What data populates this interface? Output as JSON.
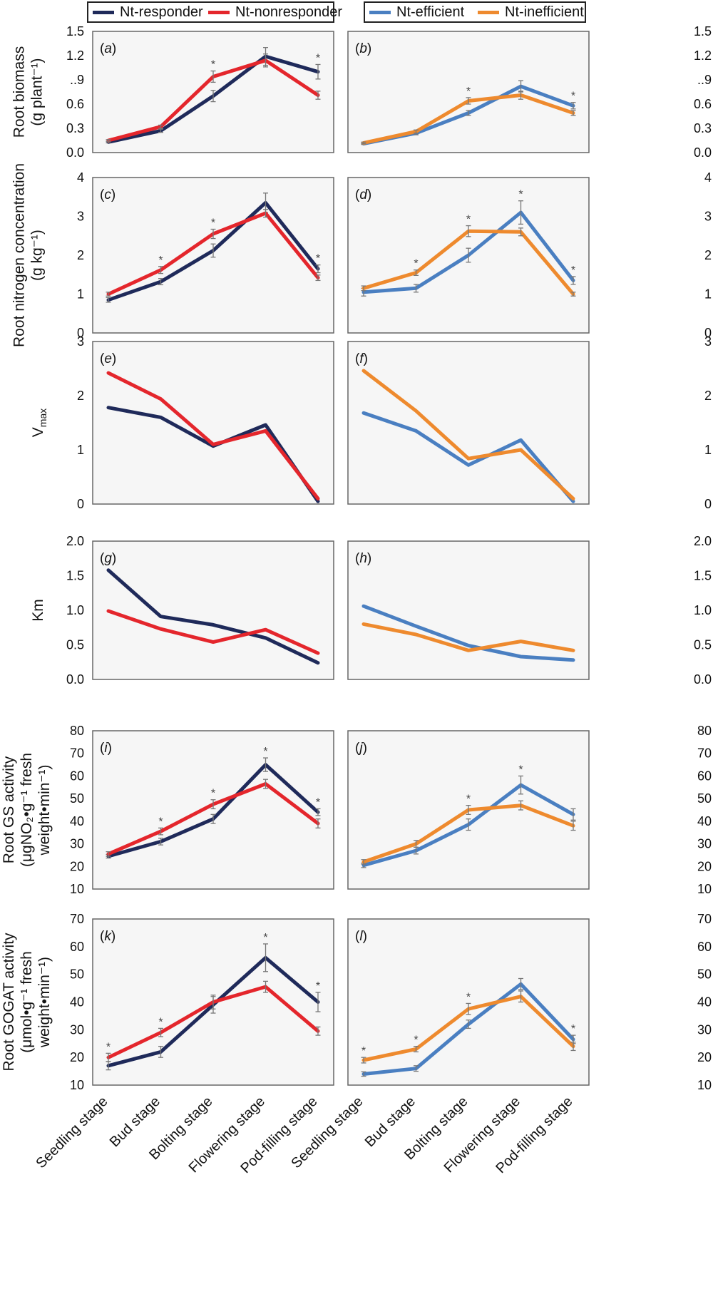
{
  "legend_groups": [
    {
      "entries": [
        {
          "label": "Nt-responder",
          "color": "#1f2a5a"
        },
        {
          "label": "Nt-nonresponder",
          "color": "#e4262c"
        }
      ]
    },
    {
      "entries": [
        {
          "label": "Nt-efficient",
          "color": "#4a7fc1"
        },
        {
          "label": "Nt-inefficient",
          "color": "#ee8a2e"
        }
      ]
    }
  ],
  "categories": [
    "Seedling stage",
    "Bud stage",
    "Bolting stage",
    "Flowering stage",
    "Pod-filling stage"
  ],
  "chart_data": [
    {
      "type": "line",
      "panel": "a",
      "ylabel": [
        "Root biomass",
        "(g plant⁻¹)"
      ],
      "yticks": [
        "0.0",
        "0.3",
        "0.6",
        "..9",
        "1.2",
        "1.5"
      ],
      "ylim": [
        0,
        1.5
      ],
      "categories": [
        "Seedling stage",
        "Bud stage",
        "Bolting stage",
        "Flowering stage",
        "Pod-filling stage"
      ],
      "series": [
        {
          "name": "Nt-responder",
          "values": [
            0.13,
            0.27,
            0.7,
            1.19,
            1.0
          ],
          "err": [
            0.01,
            0.02,
            0.07,
            0.11,
            0.09
          ]
        },
        {
          "name": "Nt-nonresponder",
          "values": [
            0.15,
            0.32,
            0.94,
            1.14,
            0.71
          ],
          "err": [
            0.01,
            0.02,
            0.07,
            0.08,
            0.05
          ]
        }
      ],
      "significant": [
        false,
        false,
        true,
        false,
        true
      ]
    },
    {
      "type": "line",
      "panel": "b",
      "yticks": [
        "0.0",
        "0.3",
        "0.6",
        "..9",
        "1.2",
        "1.5"
      ],
      "ylim": [
        0,
        1.5
      ],
      "categories": [
        "Seedling stage",
        "Bud stage",
        "Bolting stage",
        "Flowering stage",
        "Pod-filling stage"
      ],
      "series": [
        {
          "name": "Nt-efficient",
          "values": [
            0.11,
            0.24,
            0.49,
            0.82,
            0.58
          ],
          "err": [
            0.01,
            0.02,
            0.03,
            0.07,
            0.04
          ]
        },
        {
          "name": "Nt-inefficient",
          "values": [
            0.12,
            0.26,
            0.64,
            0.71,
            0.49
          ],
          "err": [
            0.01,
            0.02,
            0.04,
            0.05,
            0.03
          ]
        }
      ],
      "significant": [
        false,
        false,
        true,
        false,
        true
      ]
    },
    {
      "type": "line",
      "panel": "c",
      "ylabel": [
        "Root nitrogen concentration",
        "(g kg⁻¹)"
      ],
      "yticks": [
        "0",
        "1",
        "2",
        "3",
        "4"
      ],
      "ylim": [
        0,
        4
      ],
      "categories": [
        "Seedling stage",
        "Bud stage",
        "Bolting stage",
        "Flowering stage",
        "Pod-filling stage"
      ],
      "series": [
        {
          "name": "Nt-responder",
          "values": [
            0.85,
            1.32,
            2.12,
            3.35,
            1.65
          ],
          "err": [
            0.06,
            0.08,
            0.17,
            0.25,
            0.1
          ]
        },
        {
          "name": "Nt-nonresponder",
          "values": [
            1.0,
            1.62,
            2.55,
            3.08,
            1.42
          ],
          "err": [
            0.05,
            0.09,
            0.12,
            0.1,
            0.07
          ]
        }
      ],
      "significant": [
        false,
        true,
        true,
        false,
        true
      ]
    },
    {
      "type": "line",
      "panel": "d",
      "yticks": [
        "0",
        "1",
        "2",
        "3",
        "4"
      ],
      "ylim": [
        0,
        4
      ],
      "categories": [
        "Seedling stage",
        "Bud stage",
        "Bolting stage",
        "Flowering stage",
        "Pod-filling stage"
      ],
      "series": [
        {
          "name": "Nt-efficient",
          "values": [
            1.05,
            1.15,
            2.0,
            3.1,
            1.35
          ],
          "err": [
            0.1,
            0.1,
            0.18,
            0.3,
            0.1
          ]
        },
        {
          "name": "Nt-inefficient",
          "values": [
            1.15,
            1.55,
            2.62,
            2.6,
            1.0
          ],
          "err": [
            0.06,
            0.07,
            0.14,
            0.1,
            0.05
          ]
        }
      ],
      "significant": [
        false,
        true,
        true,
        true,
        true
      ]
    },
    {
      "type": "line",
      "panel": "e",
      "ylabel": [
        "V"
      ],
      "ylabel_sub": "max",
      "yticks": [
        "0",
        "1",
        "2",
        "3"
      ],
      "ylim": [
        0,
        3
      ],
      "categories": [
        "Seedling stage",
        "Bud stage",
        "Bolting stage",
        "Flowering stage",
        "Pod-filling stage"
      ],
      "series": [
        {
          "name": "Nt-responder",
          "values": [
            1.78,
            1.6,
            1.07,
            1.46,
            0.05
          ]
        },
        {
          "name": "Nt-nonresponder",
          "values": [
            2.42,
            1.94,
            1.1,
            1.35,
            0.1
          ]
        }
      ]
    },
    {
      "type": "line",
      "panel": "f",
      "yticks": [
        "0",
        "1",
        "2",
        "3"
      ],
      "ylim": [
        0,
        3
      ],
      "categories": [
        "Seedling stage",
        "Bud stage",
        "Bolting stage",
        "Flowering stage",
        "Pod-filling stage"
      ],
      "series": [
        {
          "name": "Nt-efficient",
          "values": [
            1.68,
            1.35,
            0.72,
            1.18,
            0.05
          ]
        },
        {
          "name": "Nt-inefficient",
          "values": [
            2.46,
            1.72,
            0.84,
            1.0,
            0.1
          ]
        }
      ]
    },
    {
      "type": "line",
      "panel": "g",
      "ylabel": [
        "Km"
      ],
      "yticks": [
        "0.0",
        "0.5",
        "1.0",
        "1.5",
        "2.0"
      ],
      "ylim": [
        0,
        2
      ],
      "categories": [
        "Seedling stage",
        "Bud stage",
        "Bolting stage",
        "Flowering stage",
        "Pod-filling stage"
      ],
      "series": [
        {
          "name": "Nt-responder",
          "values": [
            1.58,
            0.91,
            0.79,
            0.6,
            0.24
          ]
        },
        {
          "name": "Nt-nonresponder",
          "values": [
            0.99,
            0.73,
            0.54,
            0.72,
            0.38
          ]
        }
      ]
    },
    {
      "type": "line",
      "panel": "h",
      "yticks": [
        "0.0",
        "0.5",
        "1.0",
        "1.5",
        "2.0"
      ],
      "ylim": [
        0,
        2
      ],
      "categories": [
        "Seedling stage",
        "Bud stage",
        "Bolting stage",
        "Flowering stage",
        "Pod-filling stage"
      ],
      "series": [
        {
          "name": "Nt-efficient",
          "values": [
            1.06,
            0.77,
            0.49,
            0.33,
            0.28
          ]
        },
        {
          "name": "Nt-inefficient",
          "values": [
            0.8,
            0.65,
            0.42,
            0.55,
            0.42
          ]
        }
      ]
    },
    {
      "type": "line",
      "panel": "i",
      "ylabel": [
        "Root GS activity",
        "(μgNO₂•g⁻¹ fresh",
        "weight•min⁻¹)"
      ],
      "yticks": [
        "10",
        "20",
        "30",
        "40",
        "50",
        "60",
        "70",
        "80"
      ],
      "ylim": [
        10,
        80
      ],
      "categories": [
        "Seedling stage",
        "Bud stage",
        "Bolting stage",
        "Flowering stage",
        "Pod-filling stage"
      ],
      "series": [
        {
          "name": "Nt-responder",
          "values": [
            24.5,
            31.0,
            41.0,
            65.0,
            44.0
          ],
          "err": [
            0.8,
            1.5,
            2.0,
            3.0,
            1.5
          ]
        },
        {
          "name": "Nt-nonresponder",
          "values": [
            25.5,
            35.5,
            47.5,
            56.5,
            39.0
          ],
          "err": [
            1.0,
            1.5,
            2.0,
            2.0,
            2.0
          ]
        }
      ],
      "significant": [
        false,
        true,
        true,
        true,
        true
      ]
    },
    {
      "type": "line",
      "panel": "j",
      "yticks": [
        "10",
        "20",
        "30",
        "40",
        "50",
        "60",
        "70",
        "80"
      ],
      "ylim": [
        10,
        80
      ],
      "categories": [
        "Seedling stage",
        "Bud stage",
        "Bolting stage",
        "Flowering stage",
        "Pod-filling stage"
      ],
      "series": [
        {
          "name": "Nt-efficient",
          "values": [
            20.5,
            27.0,
            38.5,
            56.0,
            43.0
          ],
          "err": [
            1.0,
            1.5,
            2.5,
            4.0,
            2.5
          ]
        },
        {
          "name": "Nt-inefficient",
          "values": [
            22.0,
            30.0,
            45.0,
            47.0,
            38.0
          ],
          "err": [
            1.0,
            1.5,
            2.0,
            2.0,
            2.0
          ]
        }
      ],
      "significant": [
        false,
        false,
        true,
        true,
        false
      ]
    },
    {
      "type": "line",
      "panel": "k",
      "ylabel": [
        "Root GOGAT activity",
        "(μmol•g⁻¹ fresh",
        "weight•min⁻¹)"
      ],
      "yticks": [
        "10",
        "20",
        "30",
        "40",
        "50",
        "60",
        "70"
      ],
      "ylim": [
        10,
        70
      ],
      "categories": [
        "Seedling stage",
        "Bud stage",
        "Bolting stage",
        "Flowering stage",
        "Pod-filling stage"
      ],
      "series": [
        {
          "name": "Nt-responder",
          "values": [
            17.0,
            22.0,
            39.0,
            56.0,
            40.0
          ],
          "err": [
            1.5,
            2.0,
            3.0,
            5.0,
            3.5
          ]
        },
        {
          "name": "Nt-nonresponder",
          "values": [
            20.0,
            29.0,
            40.0,
            45.5,
            29.5
          ],
          "err": [
            1.5,
            1.5,
            2.5,
            2.0,
            1.5
          ]
        }
      ],
      "significant": [
        true,
        true,
        false,
        true,
        true
      ]
    },
    {
      "type": "line",
      "panel": "l",
      "yticks": [
        "10",
        "20",
        "30",
        "40",
        "50",
        "60",
        "70"
      ],
      "ylim": [
        10,
        70
      ],
      "categories": [
        "Seedling stage",
        "Bud stage",
        "Bolting stage",
        "Flowering stage",
        "Pod-filling stage"
      ],
      "series": [
        {
          "name": "Nt-efficient",
          "values": [
            14.0,
            16.0,
            32.0,
            46.5,
            26.5
          ],
          "err": [
            0.8,
            1.0,
            1.5,
            2.0,
            1.5
          ]
        },
        {
          "name": "Nt-inefficient",
          "values": [
            19.0,
            23.0,
            37.5,
            42.0,
            24.0
          ],
          "err": [
            1.0,
            1.0,
            2.0,
            2.0,
            1.5
          ]
        }
      ],
      "significant": [
        true,
        true,
        true,
        false,
        true
      ]
    }
  ]
}
